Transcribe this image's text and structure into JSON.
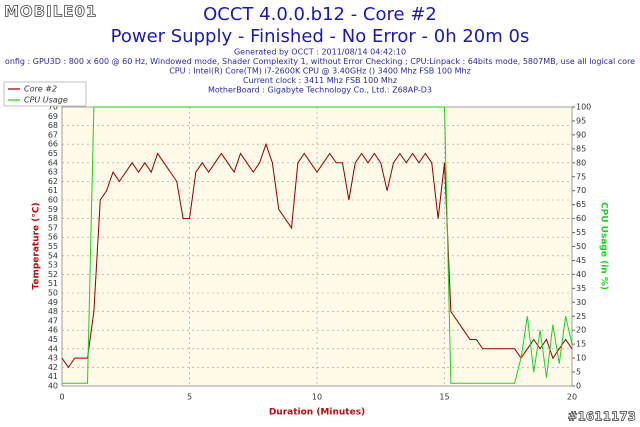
{
  "watermark": "MOBILE01",
  "image_id": "#1611173",
  "chart_data": {
    "type": "line",
    "title": "OCCT 4.0.0.b12 - Core #2",
    "subtitle": "Power Supply - Finished - No Error - 0h 20m 0s",
    "info": [
      "Generated by OCCT : 2011/08/14 04:42:10",
      "onfig : GPU3D : 800 x 600 @ 60 Hz, Windowed mode, Shader Complexity 1, without Error Checking ; CPU:Linpack : 64bits mode, 5807MB, use all logical core",
      "CPU : Intel(R) Core(TM) i7-2600K CPU @ 3.40GHz () 3400 Mhz FSB 100 Mhz",
      "Current clock : 3411 Mhz FSB 100 Mhz",
      "MotherBoard : Gigabyte Technology Co., Ltd.: Z68AP-D3"
    ],
    "xlabel": "Duration (Minutes)",
    "ylabel": "Temperature (°C)",
    "y2label": "CPU Usage (in %)",
    "x": [
      0,
      0.25,
      0.5,
      0.75,
      1,
      1.25,
      1.5,
      1.75,
      2,
      2.25,
      2.5,
      2.75,
      3,
      3.25,
      3.5,
      3.75,
      4,
      4.25,
      4.5,
      4.75,
      5,
      5.25,
      5.5,
      5.75,
      6,
      6.25,
      6.5,
      6.75,
      7,
      7.25,
      7.5,
      7.75,
      8,
      8.25,
      8.5,
      8.75,
      9,
      9.25,
      9.5,
      9.75,
      10,
      10.25,
      10.5,
      10.75,
      11,
      11.25,
      11.5,
      11.75,
      12,
      12.25,
      12.5,
      12.75,
      13,
      13.25,
      13.5,
      13.75,
      14,
      14.25,
      14.5,
      14.75,
      15,
      15.25,
      15.5,
      15.75,
      16,
      16.25,
      16.5,
      16.75,
      17,
      17.25,
      17.5,
      17.75,
      18,
      18.25,
      18.5,
      18.75,
      19,
      19.25,
      19.5,
      19.75,
      20
    ],
    "series": [
      {
        "name": "Core #2",
        "color": "#8b0000",
        "values": [
          43,
          42,
          43,
          43,
          43,
          48,
          60,
          61,
          63,
          62,
          63,
          64,
          63,
          64,
          63,
          65,
          64,
          63,
          62,
          58,
          58,
          63,
          64,
          63,
          64,
          65,
          64,
          63,
          65,
          64,
          63,
          64,
          66,
          64,
          59,
          58,
          57,
          64,
          65,
          64,
          63,
          64,
          65,
          64,
          64,
          60,
          64,
          65,
          64,
          65,
          64,
          61,
          64,
          65,
          64,
          65,
          64,
          65,
          64,
          58,
          64,
          48,
          47,
          46,
          45,
          45,
          44,
          44,
          44,
          44,
          44,
          44,
          43,
          44,
          45,
          44,
          45,
          43,
          44,
          45,
          44
        ]
      },
      {
        "name": "CPU Usage",
        "color": "#22cc22",
        "axis": "y2",
        "values": [
          1,
          1,
          1,
          1,
          1,
          100,
          100,
          100,
          100,
          100,
          100,
          100,
          100,
          100,
          100,
          100,
          100,
          100,
          100,
          100,
          100,
          100,
          100,
          100,
          100,
          100,
          100,
          100,
          100,
          100,
          100,
          100,
          100,
          100,
          100,
          100,
          100,
          100,
          100,
          100,
          100,
          100,
          100,
          100,
          100,
          100,
          100,
          100,
          100,
          100,
          100,
          100,
          100,
          100,
          100,
          100,
          100,
          100,
          100,
          100,
          100,
          1,
          1,
          1,
          1,
          1,
          1,
          1,
          1,
          1,
          1,
          1,
          10,
          25,
          5,
          20,
          3,
          22,
          8,
          25,
          15
        ]
      }
    ],
    "xlim": [
      0,
      20
    ],
    "xticks": [
      0,
      5,
      10,
      15,
      20
    ],
    "ylim": [
      40,
      70
    ],
    "yticks": [
      40,
      41,
      42,
      43,
      44,
      45,
      46,
      47,
      48,
      49,
      50,
      51,
      52,
      53,
      54,
      55,
      56,
      57,
      58,
      59,
      60,
      61,
      62,
      63,
      64,
      65,
      66,
      67,
      68,
      69,
      70
    ],
    "y2lim": [
      0,
      100
    ],
    "y2ticks": [
      0,
      5,
      10,
      15,
      20,
      25,
      30,
      35,
      40,
      45,
      50,
      55,
      60,
      65,
      70,
      75,
      80,
      85,
      90,
      95,
      100
    ],
    "grid": true,
    "legend": "upper left",
    "background": "#fffbe8"
  }
}
